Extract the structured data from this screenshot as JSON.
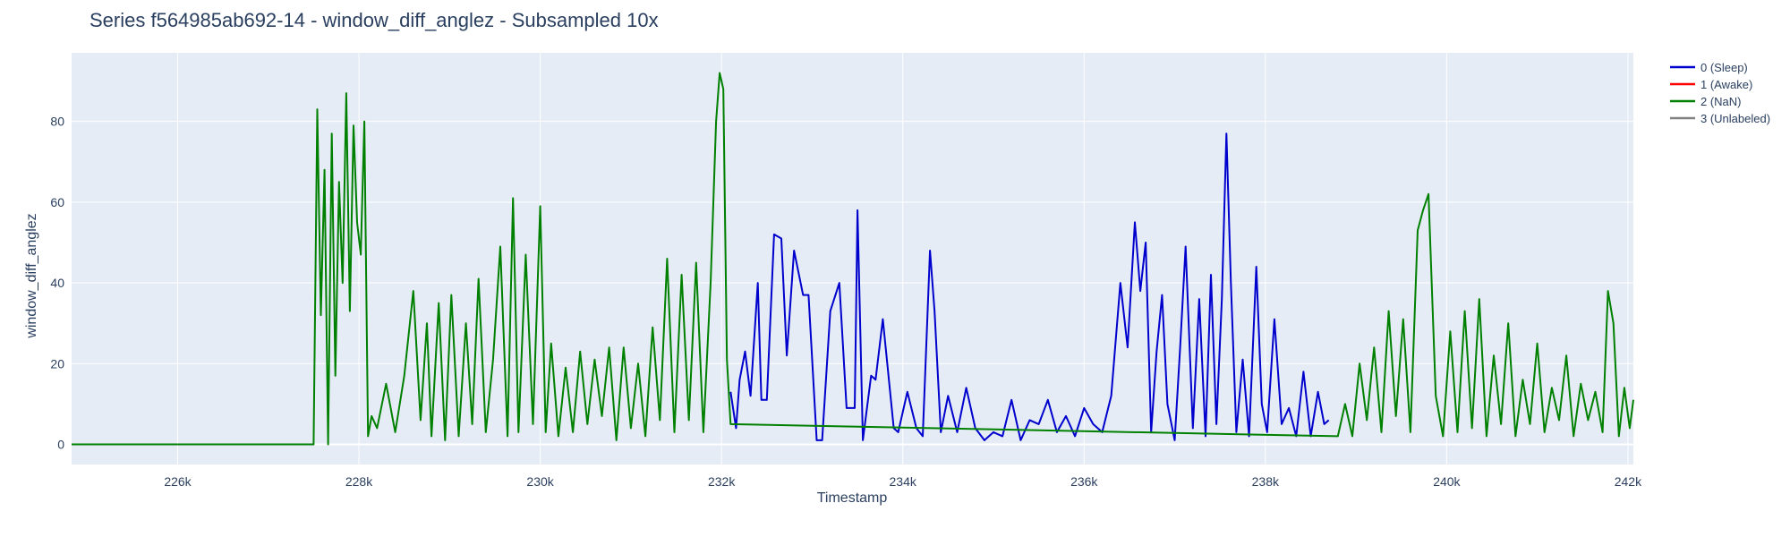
{
  "chart_data": {
    "type": "line",
    "title": "Series f564985ab692-14 - window_diff_anglez - Subsampled 10x",
    "xlabel": "Timestamp",
    "ylabel": "window_diff_anglez",
    "xlim": [
      224830,
      242060
    ],
    "ylim": [
      -5,
      97
    ],
    "x_ticks": [
      226000,
      228000,
      230000,
      232000,
      234000,
      236000,
      238000,
      240000,
      242000
    ],
    "x_tick_labels": [
      "226k",
      "228k",
      "230k",
      "232k",
      "234k",
      "236k",
      "238k",
      "240k",
      "242k"
    ],
    "y_ticks": [
      0,
      20,
      40,
      60,
      80
    ],
    "y_tick_labels": [
      "0",
      "20",
      "40",
      "60",
      "80"
    ],
    "grid": true,
    "legend_position": "right",
    "background": "#e5ecf6",
    "grid_color": "#ffffff",
    "series": [
      {
        "name": "0 (Sleep)",
        "color": "#0000cd",
        "x": [
          232100,
          232160,
          232200,
          232260,
          232320,
          232400,
          232440,
          232500,
          232580,
          232660,
          232720,
          232800,
          232900,
          232960,
          233050,
          233110,
          233200,
          233300,
          233380,
          233470,
          233500,
          233560,
          233650,
          233700,
          233780,
          233900,
          233950,
          234050,
          234150,
          234220,
          234300,
          234350,
          234420,
          234500,
          234600,
          234700,
          234800,
          234900,
          235000,
          235100,
          235200,
          235300,
          235400,
          235500,
          235600,
          235700,
          235800,
          235900,
          236000,
          236100,
          236200,
          236300,
          236400,
          236480,
          236560,
          236620,
          236680,
          236740,
          236800,
          236860,
          236920,
          237000,
          237060,
          237120,
          237200,
          237270,
          237340,
          237400,
          237460,
          237520,
          237570,
          237620,
          237680,
          237750,
          237820,
          237900,
          237960,
          238020,
          238100,
          238180,
          238260,
          238340,
          238420,
          238500,
          238580,
          238650,
          238700
        ],
        "y": [
          13,
          4,
          16,
          23,
          12,
          40,
          11,
          11,
          52,
          51,
          22,
          48,
          37,
          37,
          1,
          1,
          33,
          40,
          9,
          9,
          58,
          1,
          17,
          16,
          31,
          4,
          3,
          13,
          4,
          2,
          48,
          33,
          3,
          12,
          3,
          14,
          4,
          1,
          3,
          2,
          11,
          1,
          6,
          5,
          11,
          3,
          7,
          2,
          9,
          5,
          3,
          12,
          40,
          24,
          55,
          38,
          50,
          3,
          23,
          37,
          10,
          1,
          24,
          49,
          4,
          36,
          2,
          42,
          5,
          36,
          77,
          40,
          3,
          21,
          2,
          44,
          10,
          3,
          31,
          5,
          9,
          2,
          18,
          2,
          13,
          5,
          6
        ]
      },
      {
        "name": "1 (Awake)",
        "color": "#ff0000",
        "x": [],
        "y": []
      },
      {
        "name": "2 (NaN)",
        "color": "#008000",
        "x": [
          224830,
          227500,
          227540,
          227580,
          227620,
          227660,
          227700,
          227740,
          227780,
          227820,
          227860,
          227900,
          227940,
          227980,
          228020,
          228060,
          228100,
          228140,
          228200,
          228300,
          228400,
          228500,
          228600,
          228680,
          228750,
          228800,
          228880,
          228950,
          229020,
          229100,
          229180,
          229250,
          229320,
          229400,
          229480,
          229560,
          229640,
          229700,
          229760,
          229840,
          229920,
          230000,
          230060,
          230120,
          230200,
          230280,
          230360,
          230440,
          230520,
          230600,
          230680,
          230760,
          230840,
          230920,
          231000,
          231080,
          231160,
          231240,
          231320,
          231400,
          231480,
          231560,
          231640,
          231720,
          231800,
          231880,
          231940,
          231980,
          232020,
          232060,
          232100,
          238800,
          238880,
          238960,
          239040,
          239120,
          239200,
          239280,
          239360,
          239440,
          239520,
          239600,
          239680,
          239740,
          239800,
          239880,
          239960,
          240040,
          240120,
          240200,
          240280,
          240360,
          240440,
          240520,
          240600,
          240680,
          240760,
          240840,
          240920,
          241000,
          241080,
          241160,
          241240,
          241320,
          241400,
          241480,
          241560,
          241640,
          241720,
          241780,
          241840,
          241900,
          241960,
          242020,
          242060
        ],
        "y": [
          0,
          0,
          83,
          32,
          68,
          0,
          77,
          17,
          65,
          40,
          87,
          33,
          79,
          55,
          47,
          80,
          2,
          7,
          4,
          15,
          3,
          17,
          38,
          6,
          30,
          2,
          35,
          1,
          37,
          2,
          30,
          5,
          41,
          3,
          21,
          49,
          2,
          61,
          3,
          47,
          5,
          59,
          3,
          25,
          2,
          19,
          3,
          23,
          5,
          21,
          7,
          24,
          1,
          24,
          4,
          20,
          2,
          29,
          6,
          46,
          3,
          42,
          6,
          45,
          3,
          40,
          80,
          92,
          88,
          21,
          5,
          2,
          10,
          2,
          20,
          6,
          24,
          3,
          33,
          7,
          31,
          3,
          53,
          58,
          62,
          12,
          2,
          28,
          3,
          33,
          4,
          36,
          2,
          22,
          5,
          30,
          2,
          16,
          5,
          25,
          3,
          14,
          6,
          22,
          2,
          15,
          6,
          13,
          3,
          38,
          30,
          2,
          14,
          4,
          11
        ]
      },
      {
        "name": "3 (Unlabeled)",
        "color": "#808080",
        "x": [],
        "y": []
      }
    ]
  }
}
